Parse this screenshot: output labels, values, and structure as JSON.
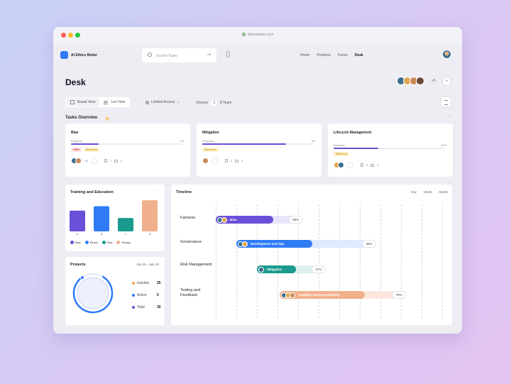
{
  "browser": {
    "url": "ethicsbetter.com"
  },
  "app": {
    "name": "AI Ethics Better"
  },
  "search": {
    "placeholder": "Search Tasks"
  },
  "nav": {
    "links": [
      "Home",
      "Products",
      "Faces",
      "Desk"
    ],
    "active": "Desk"
  },
  "page": {
    "title": "Desk",
    "team_more": "+5"
  },
  "toolbar": {
    "board_view": "Board View",
    "list_view": "List View",
    "access": "Limited Access",
    "owners_label": "Owners",
    "owners_count": "3",
    "team": "8 Team"
  },
  "tasks": {
    "title": "Tasks Overview",
    "cards": [
      {
        "name": "Bias",
        "progress_label": "Progress",
        "progress_text": "1/4",
        "progress": 0.25,
        "tags": [
          {
            "text": "NEW",
            "color": "red"
          },
          {
            "text": "Ed AI Act",
            "color": "yellow"
          }
        ],
        "more": "+6",
        "docs": "2",
        "comments": "4"
      },
      {
        "name": "Mitigation",
        "progress_label": "Progress",
        "progress_text": "3/4",
        "progress": 0.75,
        "tags": [
          {
            "text": "Ed AI Act",
            "color": "yellow"
          }
        ],
        "more": "",
        "docs": "2",
        "comments": "4"
      },
      {
        "name": "Lifecycle Management",
        "progress_label": "Progress",
        "progress_text": "4/10",
        "progress": 0.4,
        "tags": [
          {
            "text": "BIAS Act",
            "color": "yellow"
          }
        ],
        "more": "",
        "docs": "2",
        "comments": "4"
      }
    ]
  },
  "training": {
    "title": "Training and Education",
    "chart_data": {
      "type": "bar",
      "categories": [
        "a",
        "b",
        "c",
        "d"
      ],
      "values": [
        7,
        8.5,
        4.5,
        10.5
      ],
      "colors": [
        "#6a4fd8",
        "#2f7bf5",
        "#1a9a8e",
        "#f1b08c"
      ],
      "legend": [
        "Bias",
        "Ethics",
        "Risk",
        "Design"
      ]
    }
  },
  "projects": {
    "title": "Projects",
    "range": "Jan 25 - Sep 25",
    "stats": [
      {
        "label": "Inactive",
        "value": "25",
        "color": "#f29d4f"
      },
      {
        "label": "Active",
        "value": "5",
        "color": "#2f7bf5"
      },
      {
        "label": "Total",
        "value": "30",
        "color": "#6a4fd8"
      }
    ]
  },
  "timeline": {
    "title": "Timeline",
    "tabs": [
      "Day",
      "Week",
      "Month"
    ],
    "rows": [
      {
        "label": "Fairness",
        "bar": "Bias",
        "pct": "60%",
        "color": "#6a4fd8",
        "light": "#e9e4fb",
        "start": 0.0,
        "solid": 0.25,
        "end": 0.38,
        "avatars": 2
      },
      {
        "label": "Governance",
        "bar": "Development and Ops",
        "pct": "55%",
        "color": "#2f7bf5",
        "light": "#dde9fd",
        "start": 0.09,
        "solid": 0.33,
        "end": 0.61,
        "avatars": 2
      },
      {
        "label": "Risk Management",
        "bar": "Mitigation",
        "pct": "47%",
        "color": "#1a9a8e",
        "light": "#dcf1ee",
        "start": 0.18,
        "solid": 0.17,
        "end": 0.3,
        "avatars": 1
      },
      {
        "label": "Testing and Feedback",
        "bar": "Usability and Explainability",
        "pct": "75%",
        "color": "#f1b08c",
        "light": "#fbe8dc",
        "start": 0.28,
        "solid": 0.37,
        "end": 0.55,
        "avatars": 3
      }
    ]
  }
}
